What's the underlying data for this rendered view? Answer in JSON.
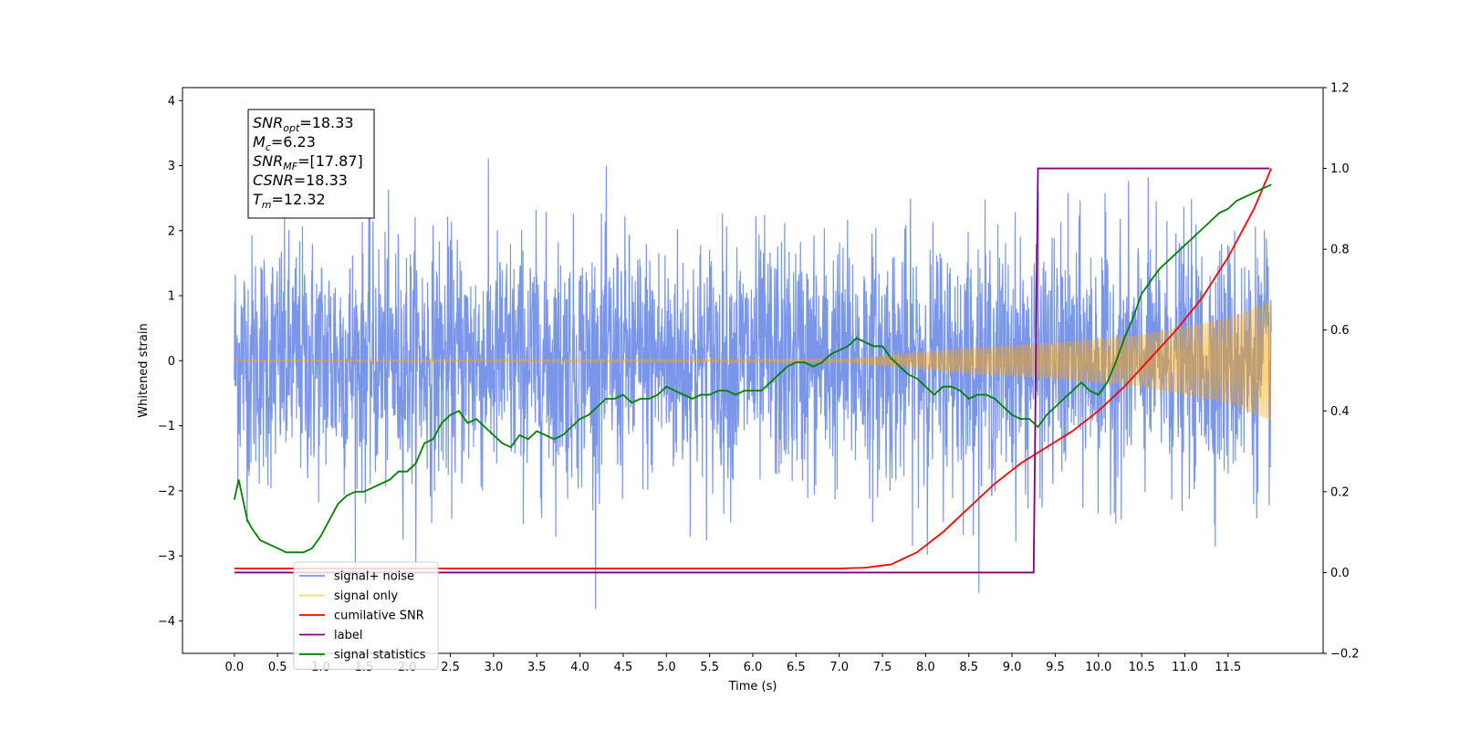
{
  "chart_data": {
    "type": "line",
    "xlabel": "Time (s)",
    "ylabel_left": "Whitened strain",
    "ylabel_right": "",
    "xlim": [
      -0.6,
      12.6
    ],
    "ylim_left": [
      -4.5,
      4.2
    ],
    "ylim_right": [
      -0.2,
      1.2
    ],
    "x_ticks": [
      "0.0",
      "0.5",
      "1.0",
      "1.5",
      "2.0",
      "2.5",
      "3.0",
      "3.5",
      "4.0",
      "4.5",
      "5.0",
      "5.5",
      "6.0",
      "6.5",
      "7.0",
      "7.5",
      "8.0",
      "8.5",
      "9.0",
      "9.5",
      "10.0",
      "10.5",
      "11.0",
      "11.5"
    ],
    "y_ticks_left": [
      "−4",
      "−3",
      "−2",
      "−1",
      "0",
      "1",
      "2",
      "3",
      "4"
    ],
    "y_ticks_right": [
      "−0.2",
      "0.0",
      "0.2",
      "0.4",
      "0.6",
      "0.8",
      "1.0",
      "1.2"
    ],
    "legend_position": "lower-left",
    "grid": false,
    "annotation": {
      "lines": [
        {
          "base": "SNR",
          "sub": "opt",
          "rest": "=18.33"
        },
        {
          "base": "M",
          "sub": "c",
          "rest": "=6.23"
        },
        {
          "base": "SNR",
          "sub": "MF",
          "rest": "=[17.87]"
        },
        {
          "base": "CSNR",
          "sub": "",
          "rest": "=18.33"
        },
        {
          "base": "T",
          "sub": "m",
          "rest": "=12.32"
        }
      ]
    },
    "series": [
      {
        "name": "signal+ noise",
        "axis": "left",
        "color": "#4169e1",
        "style": "noise",
        "x_range": [
          0.0,
          12.0
        ],
        "noise_std": 0.95,
        "spike_max": 3.8
      },
      {
        "name": "signal only",
        "axis": "left",
        "color": "#ffa500",
        "style": "chirp",
        "x_range": [
          0.0,
          12.0
        ],
        "envelope": [
          [
            0.0,
            0.01
          ],
          [
            7.0,
            0.02
          ],
          [
            7.5,
            0.08
          ],
          [
            8.5,
            0.2
          ],
          [
            9.5,
            0.28
          ],
          [
            10.5,
            0.4
          ],
          [
            11.5,
            0.65
          ],
          [
            12.0,
            0.92
          ]
        ]
      },
      {
        "name": "cumilative SNR",
        "axis": "right",
        "color": "#ff0000",
        "x": [
          0.0,
          7.0,
          7.3,
          7.6,
          7.9,
          8.2,
          8.5,
          8.8,
          9.1,
          9.4,
          9.7,
          10.0,
          10.3,
          10.6,
          10.9,
          11.2,
          11.5,
          11.8,
          12.0
        ],
        "values": [
          0.01,
          0.01,
          0.012,
          0.02,
          0.05,
          0.1,
          0.16,
          0.22,
          0.27,
          0.31,
          0.35,
          0.4,
          0.46,
          0.53,
          0.6,
          0.68,
          0.78,
          0.9,
          1.0
        ]
      },
      {
        "name": "label",
        "axis": "right",
        "color": "#800080",
        "x": [
          0.0,
          9.25,
          9.3,
          11.98
        ],
        "values": [
          0.0,
          0.0,
          1.0,
          1.0
        ]
      },
      {
        "name": "signal statistics",
        "axis": "right",
        "color": "#008000",
        "x": [
          0.0,
          0.05,
          0.1,
          0.15,
          0.2,
          0.3,
          0.4,
          0.5,
          0.6,
          0.7,
          0.8,
          0.9,
          1.0,
          1.1,
          1.2,
          1.3,
          1.4,
          1.5,
          1.6,
          1.7,
          1.8,
          1.9,
          2.0,
          2.1,
          2.2,
          2.3,
          2.4,
          2.5,
          2.6,
          2.7,
          2.8,
          2.9,
          3.0,
          3.1,
          3.2,
          3.3,
          3.4,
          3.5,
          3.6,
          3.7,
          3.8,
          3.9,
          4.0,
          4.1,
          4.2,
          4.3,
          4.4,
          4.5,
          4.6,
          4.7,
          4.8,
          4.9,
          5.0,
          5.1,
          5.2,
          5.3,
          5.4,
          5.5,
          5.6,
          5.7,
          5.8,
          5.9,
          6.0,
          6.1,
          6.2,
          6.3,
          6.4,
          6.5,
          6.6,
          6.7,
          6.8,
          6.9,
          7.0,
          7.1,
          7.2,
          7.3,
          7.4,
          7.5,
          7.6,
          7.7,
          7.8,
          7.9,
          8.0,
          8.1,
          8.2,
          8.3,
          8.4,
          8.5,
          8.6,
          8.7,
          8.8,
          8.9,
          9.0,
          9.1,
          9.2,
          9.3,
          9.4,
          9.5,
          9.6,
          9.7,
          9.8,
          9.9,
          10.0,
          10.1,
          10.2,
          10.3,
          10.4,
          10.5,
          10.6,
          10.7,
          10.8,
          10.9,
          11.0,
          11.1,
          11.2,
          11.3,
          11.4,
          11.5,
          11.6,
          11.7,
          11.8,
          11.9,
          12.0
        ],
        "values": [
          0.18,
          0.23,
          0.18,
          0.13,
          0.11,
          0.08,
          0.07,
          0.06,
          0.05,
          0.05,
          0.05,
          0.06,
          0.09,
          0.13,
          0.17,
          0.19,
          0.2,
          0.2,
          0.21,
          0.22,
          0.23,
          0.25,
          0.25,
          0.27,
          0.32,
          0.33,
          0.37,
          0.39,
          0.4,
          0.37,
          0.38,
          0.36,
          0.34,
          0.32,
          0.31,
          0.34,
          0.33,
          0.35,
          0.34,
          0.33,
          0.34,
          0.36,
          0.38,
          0.39,
          0.41,
          0.43,
          0.43,
          0.44,
          0.42,
          0.43,
          0.43,
          0.44,
          0.46,
          0.45,
          0.44,
          0.43,
          0.44,
          0.44,
          0.45,
          0.45,
          0.44,
          0.45,
          0.45,
          0.45,
          0.47,
          0.49,
          0.51,
          0.52,
          0.52,
          0.51,
          0.52,
          0.54,
          0.55,
          0.56,
          0.58,
          0.57,
          0.56,
          0.56,
          0.53,
          0.51,
          0.49,
          0.48,
          0.46,
          0.44,
          0.46,
          0.46,
          0.45,
          0.43,
          0.44,
          0.44,
          0.43,
          0.41,
          0.39,
          0.38,
          0.38,
          0.36,
          0.39,
          0.41,
          0.43,
          0.45,
          0.47,
          0.45,
          0.44,
          0.47,
          0.52,
          0.58,
          0.63,
          0.69,
          0.72,
          0.75,
          0.77,
          0.79,
          0.81,
          0.83,
          0.85,
          0.87,
          0.89,
          0.9,
          0.92,
          0.93,
          0.94,
          0.95,
          0.96
        ]
      }
    ]
  }
}
